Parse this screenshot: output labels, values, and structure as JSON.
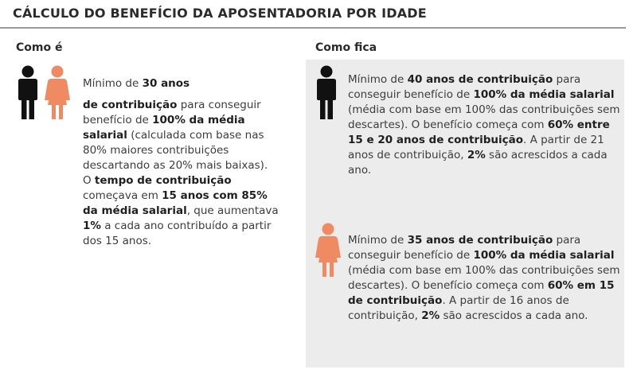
{
  "title": "CÁLCULO DO BENEFÍCIO DA APOSENTADORIA POR IDADE",
  "colors": {
    "male": "#111111",
    "female": "#f08a63",
    "panel": "#ececec"
  },
  "icons": {
    "male": "man-icon",
    "female": "woman-icon"
  },
  "left": {
    "heading": "Como é",
    "p1": [
      "Mínimo de ",
      "30 anos"
    ],
    "p2": [
      "de contribuição",
      " para conseguir benefício de ",
      "100% da média salarial",
      " (calculada com base nas 80% maiores contribuições descartando as 20% mais baixas).",
      "O ",
      "tempo de contribuição",
      " começava em ",
      "15 anos com 85% da média salarial",
      ", que aumentava ",
      "1%",
      " a cada ano contribuído a partir dos 15 anos."
    ]
  },
  "right": {
    "heading": "Como fica",
    "male_text": [
      "Mínimo de ",
      "40 anos de contribuição",
      " para conseguir benefício de ",
      "100% da média salarial",
      " (média com base em 100% das contribuições sem descartes). O benefício começa com ",
      "60% entre 15 e 20 anos de contribuição",
      ". A partir de 21 anos de contribuição, ",
      "2%",
      " são acrescidos a cada ano."
    ],
    "female_text": [
      "Mínimo de ",
      "35 anos de contribuição",
      " para conseguir benefício de ",
      "100% da média salarial",
      " (média com base em 100% das contribuições sem descartes). O benefício começa com ",
      "60% em 15 de contribuição",
      ". A partir de 16 anos de contribuição, ",
      "2%",
      " são acrescidos a cada ano."
    ]
  }
}
